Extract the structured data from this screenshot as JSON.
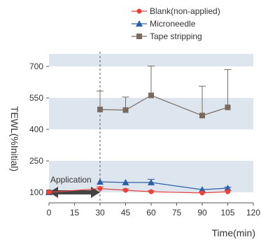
{
  "chart_data": {
    "type": "line",
    "ylabel": "TEWL(%Initial)",
    "xlabel": "Time(min)",
    "x_ticks": [
      0,
      15,
      30,
      45,
      60,
      75,
      90,
      105,
      120
    ],
    "y_ticks": [
      100,
      250,
      400,
      550,
      700
    ],
    "xlim": [
      0,
      120
    ],
    "ylim": [
      50,
      760
    ],
    "bands": [
      [
        100,
        250
      ],
      [
        400,
        550
      ],
      [
        700,
        760
      ]
    ],
    "band_color": "#dde6ee",
    "legend_position": "top-right",
    "vline_x": 30,
    "annotation": {
      "text": "Application",
      "x_start": 0,
      "x_end": 30,
      "y": 100
    },
    "series": [
      {
        "name": "Blank(non-applied)",
        "color": "#e8423c",
        "marker": "circle",
        "x": [
          0,
          30,
          45,
          60,
          90,
          105
        ],
        "y": [
          100,
          118,
          110,
          103,
          97,
          103
        ],
        "err": [
          0,
          8,
          6,
          5,
          4,
          6
        ]
      },
      {
        "name": "Microneedle",
        "color": "#2e5ea8",
        "marker": "triangle",
        "x": [
          0,
          30,
          45,
          60,
          90,
          105
        ],
        "y": [
          100,
          150,
          147,
          147,
          113,
          120
        ],
        "err": [
          0,
          0,
          0,
          15,
          0,
          5
        ]
      },
      {
        "name": "Tape stripping",
        "color": "#7b6a5e",
        "marker": "square",
        "x": [
          0,
          30,
          45,
          60,
          90,
          105
        ],
        "y": [
          100,
          495,
          492,
          562,
          466,
          505
        ],
        "err": [
          0,
          88,
          62,
          140,
          140,
          180
        ]
      }
    ]
  }
}
